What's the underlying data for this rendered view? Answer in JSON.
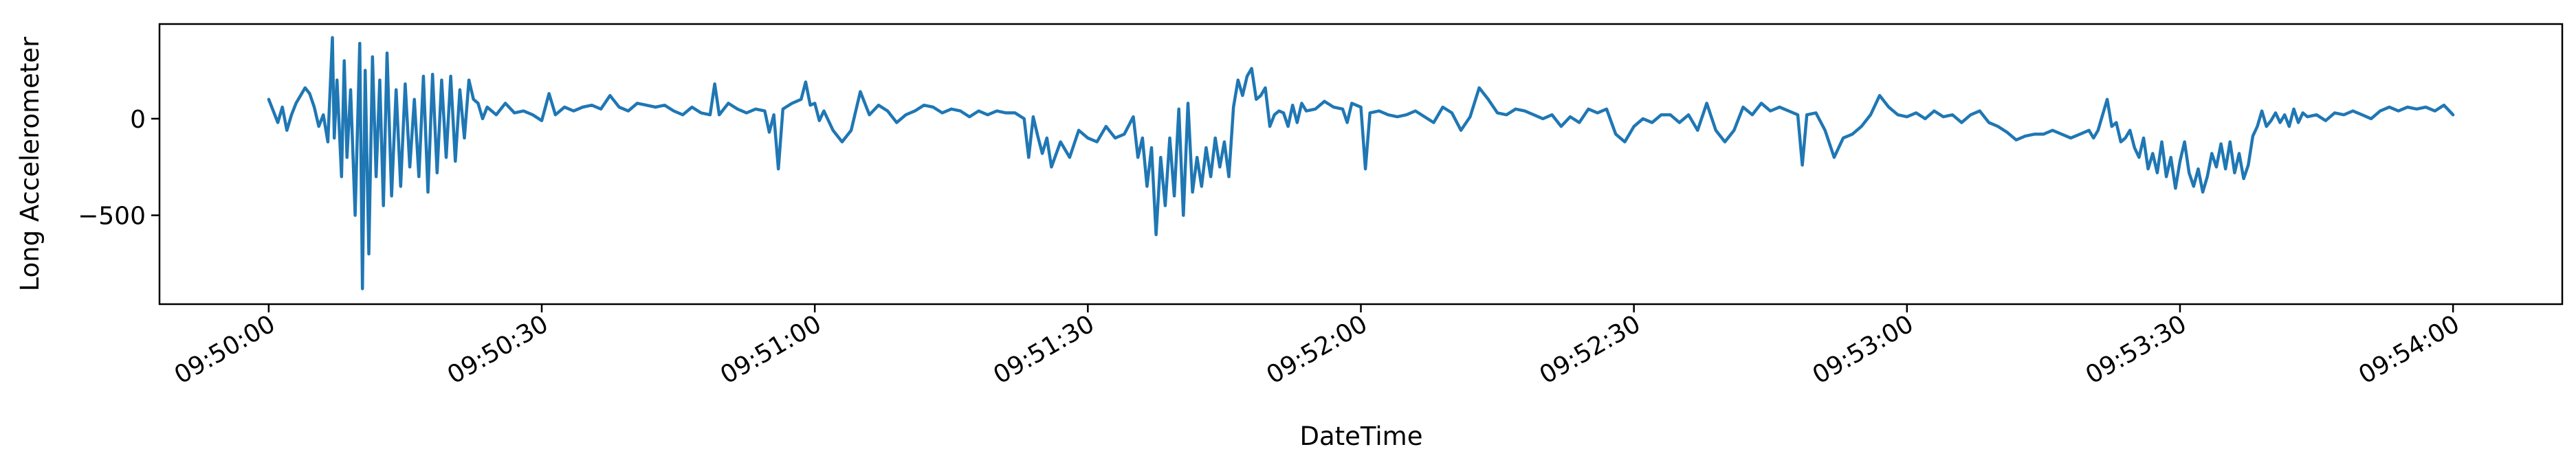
{
  "chart_data": {
    "type": "line",
    "title": "",
    "xlabel": "DateTime",
    "ylabel": "Long Accelerometer",
    "x_ticks": [
      "09:50:00",
      "09:50:30",
      "09:51:00",
      "09:51:30",
      "09:52:00",
      "09:52:30",
      "09:53:00",
      "09:53:30",
      "09:54:00"
    ],
    "y_ticks": [
      -500,
      0
    ],
    "xlim": [
      "09:49:48",
      "09:54:12"
    ],
    "ylim": [
      -960,
      490
    ],
    "grid": false,
    "legend": "none",
    "color": "#1f77b4",
    "series": [
      {
        "x_unit": "seconds after 09:50:00",
        "points": [
          [
            0,
            100
          ],
          [
            0.5,
            40
          ],
          [
            1,
            -20
          ],
          [
            1.5,
            60
          ],
          [
            2,
            -60
          ],
          [
            2.5,
            20
          ],
          [
            3,
            80
          ],
          [
            3.5,
            120
          ],
          [
            4,
            160
          ],
          [
            4.5,
            130
          ],
          [
            5,
            60
          ],
          [
            5.5,
            -40
          ],
          [
            6,
            20
          ],
          [
            6.5,
            -120
          ],
          [
            7,
            420
          ],
          [
            7.2,
            -100
          ],
          [
            7.5,
            200
          ],
          [
            8,
            -300
          ],
          [
            8.3,
            300
          ],
          [
            8.6,
            -200
          ],
          [
            9,
            150
          ],
          [
            9.5,
            -500
          ],
          [
            10,
            390
          ],
          [
            10.3,
            -880
          ],
          [
            10.6,
            250
          ],
          [
            11,
            -700
          ],
          [
            11.4,
            320
          ],
          [
            11.8,
            -300
          ],
          [
            12.2,
            200
          ],
          [
            12.6,
            -450
          ],
          [
            13,
            340
          ],
          [
            13.5,
            -400
          ],
          [
            14,
            150
          ],
          [
            14.5,
            -350
          ],
          [
            15,
            180
          ],
          [
            15.5,
            -250
          ],
          [
            16,
            100
          ],
          [
            16.5,
            -300
          ],
          [
            17,
            220
          ],
          [
            17.5,
            -380
          ],
          [
            18,
            230
          ],
          [
            18.5,
            -280
          ],
          [
            19,
            200
          ],
          [
            19.5,
            -200
          ],
          [
            20,
            220
          ],
          [
            20.5,
            -220
          ],
          [
            21,
            150
          ],
          [
            21.5,
            -100
          ],
          [
            22,
            200
          ],
          [
            22.5,
            100
          ],
          [
            23,
            80
          ],
          [
            23.5,
            0
          ],
          [
            24,
            60
          ],
          [
            25,
            20
          ],
          [
            26,
            80
          ],
          [
            27,
            30
          ],
          [
            28,
            40
          ],
          [
            29,
            20
          ],
          [
            30,
            -10
          ],
          [
            30.8,
            130
          ],
          [
            31.5,
            20
          ],
          [
            32.5,
            60
          ],
          [
            33.5,
            40
          ],
          [
            34.5,
            60
          ],
          [
            35.5,
            70
          ],
          [
            36.5,
            50
          ],
          [
            37.5,
            120
          ],
          [
            38.5,
            60
          ],
          [
            39.5,
            40
          ],
          [
            40.5,
            80
          ],
          [
            41.5,
            70
          ],
          [
            42.5,
            60
          ],
          [
            43.5,
            70
          ],
          [
            44.5,
            40
          ],
          [
            45.5,
            20
          ],
          [
            46.5,
            60
          ],
          [
            47.5,
            30
          ],
          [
            48.5,
            20
          ],
          [
            49,
            180
          ],
          [
            49.5,
            20
          ],
          [
            50.5,
            80
          ],
          [
            51.5,
            50
          ],
          [
            52.5,
            30
          ],
          [
            53.5,
            50
          ],
          [
            54.5,
            40
          ],
          [
            55,
            -70
          ],
          [
            55.5,
            20
          ],
          [
            56,
            -260
          ],
          [
            56.5,
            50
          ],
          [
            57.5,
            80
          ],
          [
            58.5,
            100
          ],
          [
            59,
            190
          ],
          [
            59.5,
            70
          ],
          [
            60,
            80
          ],
          [
            60.5,
            -10
          ],
          [
            61,
            40
          ],
          [
            62,
            -60
          ],
          [
            63,
            -120
          ],
          [
            64,
            -60
          ],
          [
            65,
            140
          ],
          [
            66,
            20
          ],
          [
            67,
            70
          ],
          [
            68,
            40
          ],
          [
            69,
            -20
          ],
          [
            70,
            20
          ],
          [
            71,
            40
          ],
          [
            72,
            70
          ],
          [
            73,
            60
          ],
          [
            74,
            30
          ],
          [
            75,
            50
          ],
          [
            76,
            40
          ],
          [
            77,
            10
          ],
          [
            78,
            40
          ],
          [
            79,
            20
          ],
          [
            80,
            40
          ],
          [
            81,
            30
          ],
          [
            82,
            30
          ],
          [
            83,
            0
          ],
          [
            83.5,
            -200
          ],
          [
            84,
            10
          ],
          [
            84.5,
            -90
          ],
          [
            85,
            -180
          ],
          [
            85.5,
            -100
          ],
          [
            86,
            -250
          ],
          [
            87,
            -120
          ],
          [
            88,
            -200
          ],
          [
            89,
            -60
          ],
          [
            90,
            -100
          ],
          [
            91,
            -120
          ],
          [
            92,
            -40
          ],
          [
            93,
            -100
          ],
          [
            94,
            -80
          ],
          [
            95,
            10
          ],
          [
            95.5,
            -200
          ],
          [
            96,
            -100
          ],
          [
            96.5,
            -350
          ],
          [
            97,
            -150
          ],
          [
            97.5,
            -600
          ],
          [
            98,
            -200
          ],
          [
            98.5,
            -450
          ],
          [
            99,
            -100
          ],
          [
            99.5,
            -400
          ],
          [
            100,
            50
          ],
          [
            100.5,
            -500
          ],
          [
            101,
            80
          ],
          [
            101.5,
            -380
          ],
          [
            102,
            -200
          ],
          [
            102.5,
            -350
          ],
          [
            103,
            -150
          ],
          [
            103.5,
            -300
          ],
          [
            104,
            -100
          ],
          [
            104.5,
            -250
          ],
          [
            105,
            -120
          ],
          [
            105.5,
            -300
          ],
          [
            106,
            60
          ],
          [
            106.5,
            200
          ],
          [
            107,
            120
          ],
          [
            107.5,
            220
          ],
          [
            108,
            260
          ],
          [
            108.5,
            100
          ],
          [
            109,
            120
          ],
          [
            109.5,
            160
          ],
          [
            110,
            -40
          ],
          [
            110.5,
            20
          ],
          [
            111,
            40
          ],
          [
            111.5,
            30
          ],
          [
            112,
            -40
          ],
          [
            112.5,
            70
          ],
          [
            113,
            -20
          ],
          [
            113.5,
            80
          ],
          [
            114,
            40
          ],
          [
            115,
            50
          ],
          [
            116,
            90
          ],
          [
            117,
            60
          ],
          [
            118,
            50
          ],
          [
            118.5,
            -20
          ],
          [
            119,
            80
          ],
          [
            120,
            60
          ],
          [
            120.5,
            -260
          ],
          [
            121,
            30
          ],
          [
            122,
            40
          ],
          [
            123,
            20
          ],
          [
            124,
            10
          ],
          [
            125,
            20
          ],
          [
            126,
            40
          ],
          [
            127,
            10
          ],
          [
            128,
            -20
          ],
          [
            129,
            60
          ],
          [
            130,
            30
          ],
          [
            131,
            -60
          ],
          [
            132,
            10
          ],
          [
            133,
            160
          ],
          [
            134,
            100
          ],
          [
            135,
            30
          ],
          [
            136,
            20
          ],
          [
            137,
            50
          ],
          [
            138,
            40
          ],
          [
            139,
            20
          ],
          [
            140,
            0
          ],
          [
            141,
            20
          ],
          [
            142,
            -40
          ],
          [
            143,
            10
          ],
          [
            144,
            -20
          ],
          [
            145,
            50
          ],
          [
            146,
            30
          ],
          [
            147,
            50
          ],
          [
            148,
            -80
          ],
          [
            149,
            -120
          ],
          [
            150,
            -40
          ],
          [
            151,
            0
          ],
          [
            152,
            -20
          ],
          [
            153,
            20
          ],
          [
            154,
            20
          ],
          [
            155,
            -20
          ],
          [
            156,
            20
          ],
          [
            157,
            -60
          ],
          [
            158,
            80
          ],
          [
            159,
            -60
          ],
          [
            160,
            -120
          ],
          [
            161,
            -60
          ],
          [
            162,
            60
          ],
          [
            163,
            20
          ],
          [
            164,
            80
          ],
          [
            165,
            40
          ],
          [
            166,
            60
          ],
          [
            167,
            40
          ],
          [
            168,
            20
          ],
          [
            168.5,
            -240
          ],
          [
            169,
            20
          ],
          [
            170,
            30
          ],
          [
            171,
            -60
          ],
          [
            172,
            -200
          ],
          [
            173,
            -100
          ],
          [
            174,
            -80
          ],
          [
            175,
            -40
          ],
          [
            176,
            20
          ],
          [
            177,
            120
          ],
          [
            178,
            60
          ],
          [
            179,
            20
          ],
          [
            180,
            10
          ],
          [
            181,
            30
          ],
          [
            182,
            0
          ],
          [
            183,
            40
          ],
          [
            184,
            10
          ],
          [
            185,
            20
          ],
          [
            186,
            -20
          ],
          [
            187,
            20
          ],
          [
            188,
            40
          ],
          [
            189,
            -20
          ],
          [
            190,
            -40
          ],
          [
            191,
            -70
          ],
          [
            192,
            -110
          ],
          [
            193,
            -90
          ],
          [
            194,
            -80
          ],
          [
            195,
            -80
          ],
          [
            196,
            -60
          ],
          [
            197,
            -80
          ],
          [
            198,
            -100
          ],
          [
            199,
            -80
          ],
          [
            200,
            -60
          ],
          [
            200.5,
            -100
          ],
          [
            201,
            -60
          ],
          [
            201.5,
            20
          ],
          [
            202,
            100
          ],
          [
            202.5,
            -40
          ],
          [
            203,
            -20
          ],
          [
            203.5,
            -120
          ],
          [
            204,
            -100
          ],
          [
            204.5,
            -60
          ],
          [
            205,
            -150
          ],
          [
            205.5,
            -200
          ],
          [
            206,
            -100
          ],
          [
            206.5,
            -260
          ],
          [
            207,
            -180
          ],
          [
            207.5,
            -280
          ],
          [
            208,
            -120
          ],
          [
            208.5,
            -300
          ],
          [
            209,
            -200
          ],
          [
            209.5,
            -360
          ],
          [
            210,
            -220
          ],
          [
            210.5,
            -120
          ],
          [
            211,
            -280
          ],
          [
            211.5,
            -350
          ],
          [
            212,
            -260
          ],
          [
            212.5,
            -380
          ],
          [
            213,
            -300
          ],
          [
            213.5,
            -180
          ],
          [
            214,
            -250
          ],
          [
            214.5,
            -130
          ],
          [
            215,
            -260
          ],
          [
            215.5,
            -120
          ],
          [
            216,
            -280
          ],
          [
            216.5,
            -180
          ],
          [
            217,
            -310
          ],
          [
            217.5,
            -240
          ],
          [
            218,
            -90
          ],
          [
            218.5,
            -40
          ],
          [
            219,
            40
          ],
          [
            219.5,
            -40
          ],
          [
            220,
            -10
          ],
          [
            220.5,
            30
          ],
          [
            221,
            -20
          ],
          [
            221.5,
            20
          ],
          [
            222,
            -40
          ],
          [
            222.5,
            50
          ],
          [
            223,
            -20
          ],
          [
            223.5,
            30
          ],
          [
            224,
            10
          ],
          [
            225,
            20
          ],
          [
            226,
            -10
          ],
          [
            227,
            30
          ],
          [
            228,
            20
          ],
          [
            229,
            40
          ],
          [
            230,
            20
          ],
          [
            231,
            0
          ],
          [
            232,
            40
          ],
          [
            233,
            60
          ],
          [
            234,
            40
          ],
          [
            235,
            60
          ],
          [
            236,
            50
          ],
          [
            237,
            60
          ],
          [
            238,
            40
          ],
          [
            239,
            70
          ],
          [
            240,
            20
          ]
        ]
      }
    ]
  }
}
